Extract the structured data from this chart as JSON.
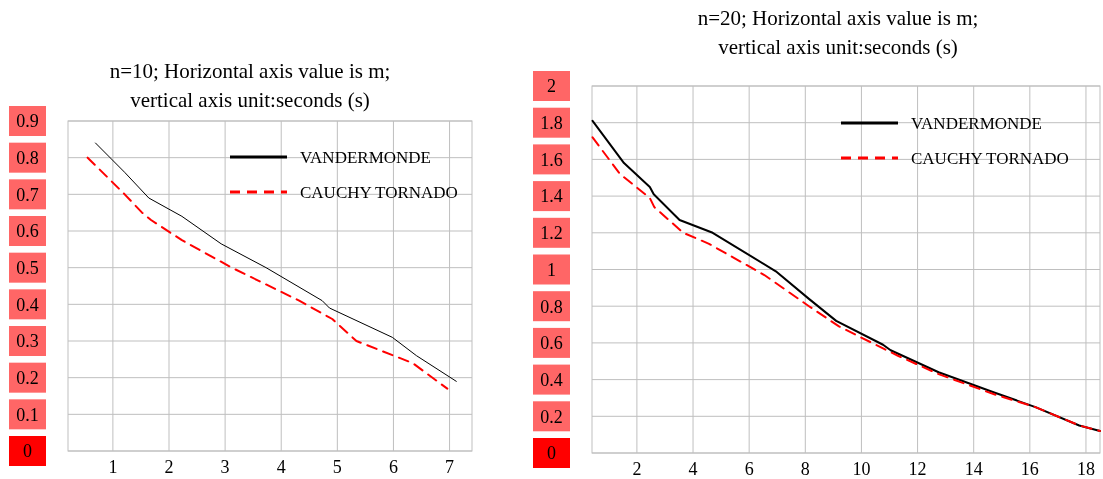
{
  "chart_data": [
    {
      "type": "line",
      "title": "n=10; Horizontal axis value is m;\nvertical axis unit:seconds (s)",
      "xlim": [
        0.2,
        7.4
      ],
      "xticks": [
        1,
        2,
        3,
        4,
        5,
        6,
        7
      ],
      "ylim": [
        0,
        0.9
      ],
      "yticks": [
        0,
        0.1,
        0.2,
        0.3,
        0.4,
        0.5,
        0.6,
        0.7,
        0.8,
        0.9
      ],
      "grid": true,
      "legend": "top right",
      "series": [
        {
          "name": "VANDERMONDE",
          "color": "#000000",
          "line_style": "solid",
          "x": [
            0.69,
            1.21,
            1.64,
            2.23,
            2.93,
            3.73,
            4.73,
            4.86,
            5.98,
            6.41,
            7.12
          ],
          "values": [
            0.84,
            0.76,
            0.69,
            0.64,
            0.565,
            0.5,
            0.41,
            0.39,
            0.31,
            0.26,
            0.19
          ]
        },
        {
          "name": "CAUCHY TORNADO",
          "color": "#ff0000",
          "line_style": "dashed",
          "x": [
            0.55,
            1.21,
            1.52,
            1.68,
            2.23,
            3.12,
            4.32,
            4.91,
            5.34,
            6.34,
            6.96
          ],
          "values": [
            0.8,
            0.7,
            0.65,
            0.63,
            0.575,
            0.5,
            0.41,
            0.36,
            0.3,
            0.24,
            0.17
          ]
        }
      ]
    },
    {
      "type": "line",
      "title": "n=20; Horizontal axis value is m;\nvertical axis unit:seconds (s)",
      "xlim": [
        0.4,
        18.5
      ],
      "xticks": [
        2,
        4,
        6,
        8,
        10,
        12,
        14,
        16,
        18
      ],
      "ylim": [
        0,
        2
      ],
      "yticks": [
        0,
        0.2,
        0.4,
        0.6,
        0.8,
        1,
        1.2,
        1.4,
        1.6,
        1.8,
        2
      ],
      "grid": true,
      "legend": "top right",
      "series": [
        {
          "name": "VANDERMONDE",
          "color": "#000000",
          "line_style": "solid",
          "x": [
            0.42,
            1.54,
            2.46,
            2.6,
            3.52,
            4.7,
            6.95,
            8.13,
            9.1,
            10.77,
            11.04,
            12.75,
            14.73,
            16.2,
            17.76,
            18.5
          ],
          "values": [
            1.81,
            1.58,
            1.45,
            1.41,
            1.27,
            1.2,
            0.99,
            0.84,
            0.72,
            0.59,
            0.56,
            0.44,
            0.33,
            0.25,
            0.15,
            0.12
          ]
        },
        {
          "name": "CAUCHY TORNADO",
          "color": "#ff0000",
          "line_style": "dashed",
          "x": [
            0.42,
            1.4,
            2.46,
            2.62,
            3.65,
            4.57,
            6.54,
            8.13,
            9.2,
            10.77,
            11.3,
            12.75,
            14.73,
            16.2,
            17.76,
            18.5
          ],
          "values": [
            1.72,
            1.52,
            1.39,
            1.34,
            1.2,
            1.14,
            0.97,
            0.8,
            0.69,
            0.57,
            0.53,
            0.43,
            0.32,
            0.25,
            0.15,
            0.12
          ]
        }
      ]
    }
  ]
}
